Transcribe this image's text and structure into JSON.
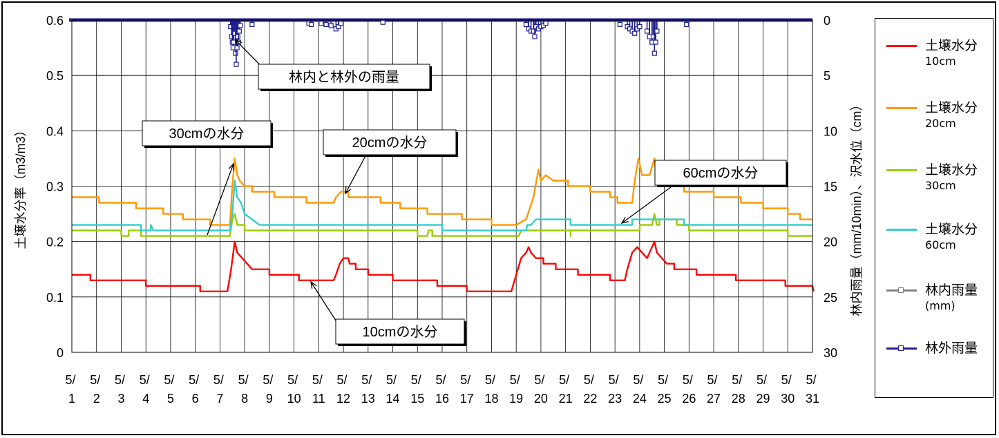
{
  "chart_data": {
    "type": "line",
    "title": "",
    "ylabel": "土壌水分率（m3/m3）",
    "y2label": "林内雨量（mm/10min）、沢水位（cm）",
    "ylim": [
      0,
      0.6
    ],
    "y2lim": [
      0,
      30
    ],
    "y2_inverted": true,
    "yticks": [
      "0",
      "0.1",
      "0.2",
      "0.3",
      "0.4",
      "0.5",
      "0.6"
    ],
    "y2ticks": [
      "0",
      "5",
      "10",
      "15",
      "20",
      "25",
      "30"
    ],
    "xlim": [
      1,
      31
    ],
    "xtick_top": [
      "5/",
      "5/",
      "5/",
      "5/",
      "5/",
      "5/",
      "5/",
      "5/",
      "5/",
      "5/",
      "5/",
      "5/",
      "5/",
      "5/",
      "5/",
      "5/",
      "5/",
      "5/",
      "5/",
      "5/",
      "5/",
      "5/",
      "5/",
      "5/",
      "5/",
      "5/",
      "5/",
      "5/",
      "5/",
      "5/",
      "5/"
    ],
    "xtick_bottom": [
      "1",
      "2",
      "3",
      "4",
      "5",
      "6",
      "7",
      "8",
      "9",
      "10",
      "11",
      "12",
      "13",
      "14",
      "15",
      "16",
      "17",
      "18",
      "19",
      "20",
      "21",
      "22",
      "23",
      "24",
      "25",
      "26",
      "27",
      "28",
      "29",
      "30",
      "31"
    ],
    "grid": true,
    "legend_position": "right",
    "series": [
      {
        "name": "土壌水分",
        "sub": "10cm",
        "color": "#ff0000",
        "marker": "none",
        "axis": "left",
        "points": [
          [
            1,
            0.14
          ],
          [
            1.75,
            0.14
          ],
          [
            1.75,
            0.13
          ],
          [
            4.0,
            0.13
          ],
          [
            4.0,
            0.12
          ],
          [
            6.2,
            0.12
          ],
          [
            6.2,
            0.11
          ],
          [
            7.3,
            0.11
          ],
          [
            7.45,
            0.15
          ],
          [
            7.6,
            0.2
          ],
          [
            7.7,
            0.18
          ],
          [
            7.9,
            0.17
          ],
          [
            8.1,
            0.16
          ],
          [
            8.3,
            0.15
          ],
          [
            9.0,
            0.15
          ],
          [
            9.0,
            0.14
          ],
          [
            10.2,
            0.14
          ],
          [
            10.2,
            0.13
          ],
          [
            11.0,
            0.13
          ],
          [
            11.6,
            0.13
          ],
          [
            11.7,
            0.14
          ],
          [
            11.85,
            0.16
          ],
          [
            12.0,
            0.17
          ],
          [
            12.2,
            0.17
          ],
          [
            12.25,
            0.16
          ],
          [
            12.5,
            0.16
          ],
          [
            12.5,
            0.15
          ],
          [
            13.0,
            0.15
          ],
          [
            13.0,
            0.14
          ],
          [
            14.0,
            0.14
          ],
          [
            14.0,
            0.13
          ],
          [
            15.8,
            0.13
          ],
          [
            15.8,
            0.12
          ],
          [
            17.0,
            0.12
          ],
          [
            17.0,
            0.11
          ],
          [
            18.8,
            0.11
          ],
          [
            19.0,
            0.14
          ],
          [
            19.2,
            0.17
          ],
          [
            19.4,
            0.18
          ],
          [
            19.5,
            0.19
          ],
          [
            19.6,
            0.18
          ],
          [
            19.8,
            0.17
          ],
          [
            20.1,
            0.17
          ],
          [
            20.1,
            0.16
          ],
          [
            20.6,
            0.16
          ],
          [
            20.6,
            0.15
          ],
          [
            21.5,
            0.15
          ],
          [
            21.5,
            0.14
          ],
          [
            22.8,
            0.14
          ],
          [
            22.8,
            0.13
          ],
          [
            23.4,
            0.13
          ],
          [
            23.5,
            0.15
          ],
          [
            23.7,
            0.18
          ],
          [
            23.9,
            0.19
          ],
          [
            24.1,
            0.18
          ],
          [
            24.3,
            0.17
          ],
          [
            24.5,
            0.19
          ],
          [
            24.6,
            0.2
          ],
          [
            24.7,
            0.18
          ],
          [
            24.9,
            0.17
          ],
          [
            25.1,
            0.16
          ],
          [
            25.4,
            0.16
          ],
          [
            25.4,
            0.15
          ],
          [
            26.3,
            0.15
          ],
          [
            26.3,
            0.14
          ],
          [
            27.9,
            0.14
          ],
          [
            27.9,
            0.13
          ],
          [
            29.9,
            0.13
          ],
          [
            29.9,
            0.12
          ],
          [
            31.0,
            0.12
          ],
          [
            31.05,
            0.11
          ]
        ]
      },
      {
        "name": "土壌水分",
        "sub": "20cm",
        "color": "#ff9900",
        "marker": "none",
        "axis": "left",
        "points": [
          [
            1,
            0.28
          ],
          [
            2.1,
            0.28
          ],
          [
            2.1,
            0.27
          ],
          [
            3.6,
            0.27
          ],
          [
            3.6,
            0.26
          ],
          [
            4.7,
            0.26
          ],
          [
            4.7,
            0.25
          ],
          [
            5.5,
            0.25
          ],
          [
            5.5,
            0.24
          ],
          [
            6.6,
            0.24
          ],
          [
            6.6,
            0.23
          ],
          [
            7.4,
            0.23
          ],
          [
            7.5,
            0.3
          ],
          [
            7.6,
            0.35
          ],
          [
            7.7,
            0.32
          ],
          [
            7.8,
            0.31
          ],
          [
            8.0,
            0.3
          ],
          [
            8.3,
            0.3
          ],
          [
            8.3,
            0.29
          ],
          [
            9.2,
            0.29
          ],
          [
            9.2,
            0.28
          ],
          [
            10.5,
            0.28
          ],
          [
            10.5,
            0.27
          ],
          [
            11.6,
            0.27
          ],
          [
            11.7,
            0.28
          ],
          [
            11.9,
            0.29
          ],
          [
            12.2,
            0.29
          ],
          [
            12.2,
            0.28
          ],
          [
            13.5,
            0.28
          ],
          [
            13.5,
            0.27
          ],
          [
            14.3,
            0.27
          ],
          [
            14.3,
            0.26
          ],
          [
            15.4,
            0.26
          ],
          [
            15.4,
            0.25
          ],
          [
            16.8,
            0.25
          ],
          [
            16.8,
            0.24
          ],
          [
            18.0,
            0.24
          ],
          [
            18.0,
            0.23
          ],
          [
            19.0,
            0.23
          ],
          [
            19.4,
            0.24
          ],
          [
            19.7,
            0.28
          ],
          [
            19.9,
            0.33
          ],
          [
            20.0,
            0.31
          ],
          [
            20.2,
            0.32
          ],
          [
            20.5,
            0.31
          ],
          [
            21.1,
            0.31
          ],
          [
            21.1,
            0.3
          ],
          [
            22.0,
            0.3
          ],
          [
            22.0,
            0.29
          ],
          [
            22.8,
            0.29
          ],
          [
            22.8,
            0.28
          ],
          [
            23.1,
            0.28
          ],
          [
            23.1,
            0.27
          ],
          [
            23.7,
            0.27
          ],
          [
            23.8,
            0.31
          ],
          [
            23.95,
            0.35
          ],
          [
            24.1,
            0.32
          ],
          [
            24.4,
            0.32
          ],
          [
            24.6,
            0.35
          ],
          [
            24.7,
            0.31
          ],
          [
            25.0,
            0.31
          ],
          [
            25.3,
            0.3
          ],
          [
            25.8,
            0.3
          ],
          [
            25.8,
            0.29
          ],
          [
            27.0,
            0.29
          ],
          [
            27.0,
            0.28
          ],
          [
            28.1,
            0.28
          ],
          [
            28.1,
            0.27
          ],
          [
            29.0,
            0.27
          ],
          [
            29.0,
            0.26
          ],
          [
            30.0,
            0.26
          ],
          [
            30.0,
            0.25
          ],
          [
            30.5,
            0.25
          ],
          [
            30.5,
            0.24
          ],
          [
            31.0,
            0.24
          ]
        ]
      },
      {
        "name": "土壌水分",
        "sub": "30cm",
        "color": "#99cc00",
        "marker": "none",
        "axis": "left",
        "points": [
          [
            1,
            0.22
          ],
          [
            3.0,
            0.22
          ],
          [
            3.0,
            0.21
          ],
          [
            3.3,
            0.21
          ],
          [
            3.3,
            0.22
          ],
          [
            3.8,
            0.22
          ],
          [
            3.8,
            0.21
          ],
          [
            7.4,
            0.21
          ],
          [
            7.5,
            0.24
          ],
          [
            7.6,
            0.25
          ],
          [
            7.7,
            0.23
          ],
          [
            8.0,
            0.23
          ],
          [
            8.0,
            0.22
          ],
          [
            15.0,
            0.22
          ],
          [
            15.0,
            0.21
          ],
          [
            15.4,
            0.21
          ],
          [
            15.45,
            0.22
          ],
          [
            15.6,
            0.22
          ],
          [
            15.6,
            0.21
          ],
          [
            19.1,
            0.21
          ],
          [
            19.2,
            0.22
          ],
          [
            21.2,
            0.22
          ],
          [
            21.2,
            0.21
          ],
          [
            21.2,
            0.22
          ],
          [
            24.0,
            0.22
          ],
          [
            24.0,
            0.23
          ],
          [
            24.5,
            0.23
          ],
          [
            24.6,
            0.25
          ],
          [
            24.7,
            0.23
          ],
          [
            24.8,
            0.23
          ],
          [
            24.8,
            0.24
          ],
          [
            25.5,
            0.24
          ],
          [
            25.5,
            0.23
          ],
          [
            26.0,
            0.23
          ],
          [
            26.0,
            0.22
          ],
          [
            30.0,
            0.22
          ],
          [
            30.0,
            0.21
          ],
          [
            31.0,
            0.21
          ]
        ]
      },
      {
        "name": "土壌水分",
        "sub": "60cm",
        "color": "#33cccc",
        "marker": "none",
        "axis": "left",
        "points": [
          [
            1,
            0.23
          ],
          [
            3.8,
            0.23
          ],
          [
            3.8,
            0.22
          ],
          [
            4.2,
            0.22
          ],
          [
            4.2,
            0.23
          ],
          [
            4.3,
            0.22
          ],
          [
            7.4,
            0.22
          ],
          [
            7.5,
            0.25
          ],
          [
            7.6,
            0.31
          ],
          [
            7.7,
            0.28
          ],
          [
            7.85,
            0.27
          ],
          [
            8.0,
            0.25
          ],
          [
            8.3,
            0.24
          ],
          [
            8.6,
            0.23
          ],
          [
            16.0,
            0.23
          ],
          [
            16.0,
            0.22
          ],
          [
            19.4,
            0.22
          ],
          [
            19.45,
            0.23
          ],
          [
            19.6,
            0.23
          ],
          [
            19.8,
            0.24
          ],
          [
            21.2,
            0.24
          ],
          [
            21.2,
            0.23
          ],
          [
            23.7,
            0.23
          ],
          [
            23.7,
            0.24
          ],
          [
            25.8,
            0.24
          ],
          [
            25.8,
            0.23
          ],
          [
            31.0,
            0.23
          ]
        ]
      },
      {
        "name": "林内雨量",
        "sub": "(mm)",
        "color": "#808080",
        "marker": "square",
        "axis": "right",
        "points": []
      },
      {
        "name": "林外雨量",
        "sub": "",
        "color": "#1f1f8f",
        "marker": "square",
        "axis": "right",
        "bars": [
          [
            7.43,
            0.6
          ],
          [
            7.47,
            1.5
          ],
          [
            7.5,
            2.0
          ],
          [
            7.53,
            2.5
          ],
          [
            7.56,
            2.0
          ],
          [
            7.6,
            1.2
          ],
          [
            7.63,
            3.0
          ],
          [
            7.66,
            4.0
          ],
          [
            7.69,
            2.5
          ],
          [
            7.72,
            1.5
          ],
          [
            7.75,
            2.0
          ],
          [
            7.78,
            1.0
          ],
          [
            7.82,
            0.5
          ],
          [
            8.3,
            0.4
          ],
          [
            10.6,
            0.3
          ],
          [
            10.7,
            0.4
          ],
          [
            11.1,
            0.3
          ],
          [
            11.3,
            0.4
          ],
          [
            11.5,
            0.5
          ],
          [
            11.7,
            0.8
          ],
          [
            11.8,
            0.6
          ],
          [
            11.9,
            0.3
          ],
          [
            13.6,
            0.2
          ],
          [
            19.4,
            0.4
          ],
          [
            19.5,
            0.8
          ],
          [
            19.6,
            1.0
          ],
          [
            19.7,
            1.0
          ],
          [
            19.75,
            1.5
          ],
          [
            19.8,
            0.6
          ],
          [
            19.9,
            0.8
          ],
          [
            20.0,
            0.6
          ],
          [
            20.1,
            0.5
          ],
          [
            20.2,
            0.3
          ],
          [
            23.2,
            0.4
          ],
          [
            23.5,
            0.6
          ],
          [
            23.6,
            0.8
          ],
          [
            23.7,
            1.0
          ],
          [
            23.8,
            1.2
          ],
          [
            23.9,
            0.8
          ],
          [
            24.0,
            0.6
          ],
          [
            24.3,
            1.0
          ],
          [
            24.4,
            1.5
          ],
          [
            24.5,
            2.0
          ],
          [
            24.55,
            1.5
          ],
          [
            24.6,
            3.0
          ],
          [
            24.65,
            2.0
          ],
          [
            24.7,
            1.0
          ],
          [
            25.9,
            0.4
          ]
        ]
      }
    ],
    "annotations": [
      {
        "text": "林内と林外の雨量"
      },
      {
        "text": "30cmの水分"
      },
      {
        "text": "20cmの水分"
      },
      {
        "text": "60cmの水分"
      },
      {
        "text": "10cmの水分"
      }
    ]
  }
}
